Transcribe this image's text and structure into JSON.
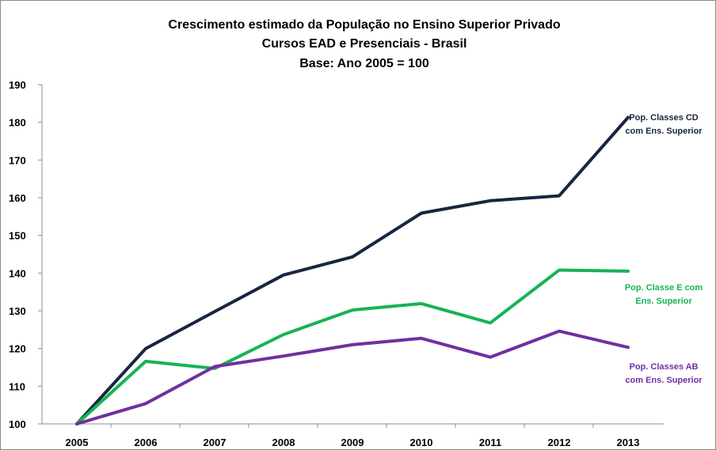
{
  "chart_data": {
    "type": "line",
    "title": [
      "Crescimento estimado da População no Ensino Superior Privado",
      "Cursos EAD e Presenciais - Brasil",
      "Base: Ano 2005 = 100"
    ],
    "xlabel": "",
    "ylabel": "",
    "x": [
      "2005",
      "2006",
      "2007",
      "2008",
      "2009",
      "2010",
      "2011",
      "2012",
      "2013"
    ],
    "ylim": [
      100,
      190
    ],
    "yticks": [
      100,
      110,
      120,
      130,
      140,
      150,
      160,
      170,
      180,
      190
    ],
    "grid": false,
    "legend": "inline labels at right end of each line",
    "series": [
      {
        "name": "Pop. Classes CD com Ens. Superior",
        "label_lines": [
          "Pop. Classes CD",
          "com Ens. Superior"
        ],
        "color": "#172640",
        "values": [
          100,
          120,
          129.8,
          139.5,
          144.3,
          155.9,
          159.2,
          160.5,
          181.3
        ]
      },
      {
        "name": "Pop. Classe E com Ens. Superior",
        "label_lines": [
          "Pop. Classe E com",
          "Ens. Superior"
        ],
        "color": "#16b356",
        "values": [
          100,
          116.6,
          114.7,
          123.7,
          130.2,
          131.9,
          126.8,
          140.8,
          140.5
        ]
      },
      {
        "name": "Pop. Classes AB com Ens. Superior",
        "label_lines": [
          "Pop. Classes AB",
          "com Ens. Superior"
        ],
        "color": "#7030a0",
        "values": [
          100,
          105.4,
          115.2,
          118,
          121,
          122.7,
          117.7,
          124.6,
          120.3
        ]
      }
    ]
  }
}
